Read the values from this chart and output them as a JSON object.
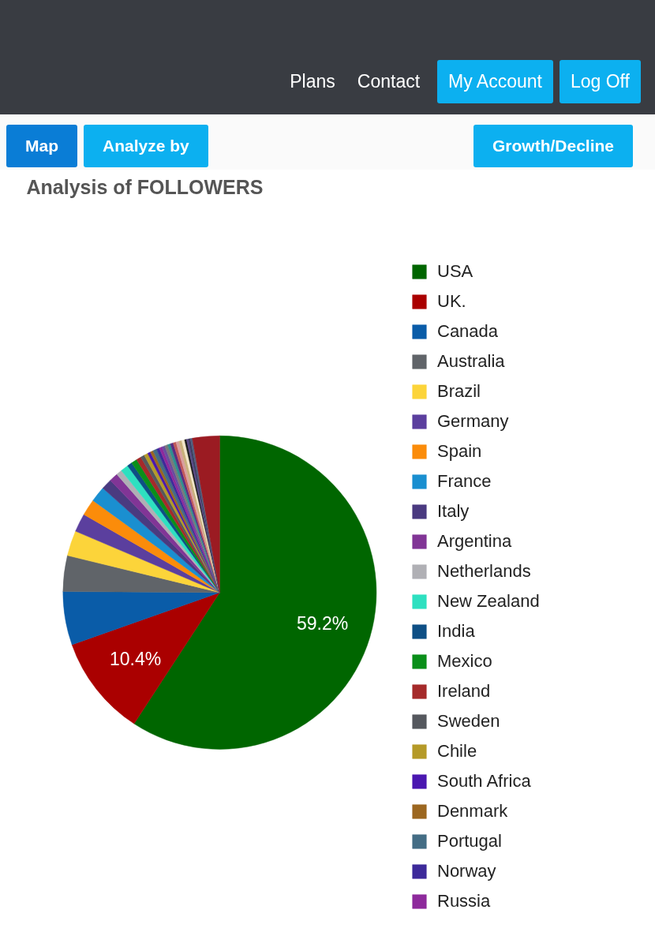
{
  "chart_data": {
    "type": "pie",
    "title": "Analysis of FOLLOWERS",
    "annotations": [
      "Plans",
      "Contact",
      "My Account",
      "Log Off",
      "Map",
      "Analyze by",
      "Growth/Decline"
    ],
    "categories": [
      "USA",
      "UK.",
      "Canada",
      "Australia",
      "Brazil",
      "Germany",
      "Spain",
      "France",
      "Italy",
      "Argentina",
      "Netherlands",
      "New Zealand",
      "India",
      "Mexico",
      "Ireland",
      "Sweden",
      "Chile",
      "South Africa",
      "Denmark",
      "Portugal",
      "Norway",
      "Russia",
      null,
      null,
      null,
      null,
      null,
      null,
      null,
      null,
      null,
      null,
      null,
      null,
      null
    ],
    "values": [
      59.2,
      10.4,
      5.5,
      3.7,
      2.6,
      1.9,
      1.7,
      1.6,
      1.1,
      0.9,
      0.6,
      0.8,
      0.5,
      0.6,
      0.5,
      0.4,
      0.4,
      0.3,
      0.3,
      0.4,
      0.3,
      0.3,
      0.3,
      0.3,
      0.3,
      0.3,
      0.3,
      0.3,
      0.3,
      0.3,
      0.2,
      0.2,
      0.2,
      0.2,
      2.8
    ],
    "colors": [
      "#006600",
      "#aa0000",
      "#0a5ca8",
      "#606469",
      "#fcd43a",
      "#5b3f9e",
      "#fb8c0a",
      "#1a8fd0",
      "#4a3a80",
      "#813596",
      "#b0b0b5",
      "#2ee0c0",
      "#0e4f85",
      "#0a8f1a",
      "#a52a2a",
      "#55585e",
      "#b59a28",
      "#4a17b0",
      "#9c6720",
      "#446d85",
      "#3d2a9a",
      "#8e2a9c",
      "#6a4ca0",
      "#7a7a7a",
      "#2f8f8f",
      "#5a2d82",
      "#c25a5a",
      "#d9a0a0",
      "#c9b07a",
      "#f2e6c8",
      "#1a1a1a",
      "#5a4a8a",
      "#3c3c60",
      "#4f5f7f",
      "#9b1b22"
    ],
    "value_labels": [
      "59.2%",
      "10.4%",
      null,
      null,
      null,
      null,
      null,
      null,
      null,
      null,
      null,
      null,
      null,
      null,
      null,
      null,
      null,
      null,
      null,
      null,
      null,
      null,
      null,
      null,
      null,
      null,
      null,
      null,
      null,
      null,
      null,
      null,
      null,
      null,
      null
    ],
    "legend": "right"
  }
}
